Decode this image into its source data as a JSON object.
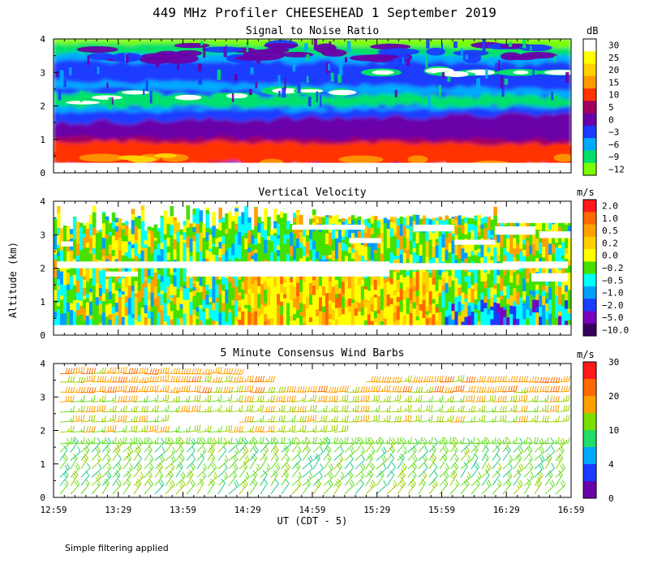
{
  "header": {
    "title": "449 MHz Profiler CHEESEHEAD  1 September 2019"
  },
  "footer": {
    "note": "Simple filtering applied"
  },
  "axes": {
    "ylabel": "Altitude (km)",
    "xlabel": "UT  (CDT - 5)",
    "x_ticks": [
      "12:59",
      "13:29",
      "13:59",
      "14:29",
      "14:59",
      "15:29",
      "15:59",
      "16:29",
      "16:59"
    ],
    "y_ticks": [
      "0",
      "1",
      "2",
      "3",
      "4"
    ],
    "ylim": [
      0,
      4
    ]
  },
  "chart_data": [
    {
      "type": "heatmap",
      "title": "Signal to Noise Ratio",
      "colorbar_unit": "dB",
      "colorbar_ticks": [
        "30",
        "25",
        "20",
        "15",
        "10",
        "5",
        "0",
        "−3",
        "−6",
        "−9",
        "−12"
      ],
      "colorbar_colors": [
        "#ffffff",
        "#ffff00",
        "#ffd000",
        "#ff9900",
        "#ff3300",
        "#a00060",
        "#6a00a8",
        "#1a3cff",
        "#00aaff",
        "#00e06a",
        "#7aff00"
      ],
      "x_range": [
        "12:59",
        "16:59"
      ],
      "ylim": [
        0,
        4
      ],
      "layers": [
        {
          "label": "10 to 30",
          "y_from": 0.3,
          "y_to": 1.0
        },
        {
          "label": "0 to 5",
          "y_from": 1.0,
          "y_to": 1.7
        },
        {
          "label": "30",
          "y_from": 2.1,
          "y_to": 2.4
        },
        {
          "label": "-3 to 0",
          "y_from": 2.8,
          "y_to": 3.3
        },
        {
          "label": "-12 to -6",
          "y_from": 3.3,
          "y_to": 4.0
        }
      ]
    },
    {
      "type": "heatmap",
      "title": "Vertical Velocity",
      "colorbar_unit": "m/s",
      "colorbar_ticks": [
        "2.0",
        "1.0",
        "0.5",
        "0.2",
        "0.0",
        "−0.2",
        "−0.5",
        "−1.0",
        "−2.0",
        "−5.0",
        "−10.0"
      ],
      "colorbar_colors": [
        "#ff1a1a",
        "#ff6a00",
        "#ffa000",
        "#ffd000",
        "#ffff00",
        "#44e000",
        "#00ffff",
        "#00a0ff",
        "#1a3cff",
        "#7a00c0",
        "#3a0060"
      ],
      "x_range": [
        "12:59",
        "16:59"
      ],
      "ylim": [
        0,
        4
      ],
      "data_gap_heights_km": [
        2.8,
        2.2,
        1.8
      ]
    },
    {
      "type": "scatter",
      "title": "5 Minute Consensus Wind Barbs",
      "colorbar_unit": "m/s",
      "colorbar_ticks": [
        "30",
        "20",
        "10",
        "4",
        "0"
      ],
      "colorbar_colors": [
        "#ff1a1a",
        "#ff6a00",
        "#ffa000",
        "#7ae000",
        "#22dd66",
        "#00aaff",
        "#1a3cff",
        "#6a00a8"
      ],
      "x_range": [
        "12:59",
        "16:59"
      ],
      "ylim": [
        0,
        4
      ],
      "barb_levels_km": [
        0.1,
        0.35,
        0.6,
        0.85,
        1.1,
        1.35,
        1.6,
        1.95,
        2.25,
        2.55,
        2.85,
        3.15,
        3.45,
        3.7
      ],
      "barb_interval_minutes": 5
    }
  ]
}
